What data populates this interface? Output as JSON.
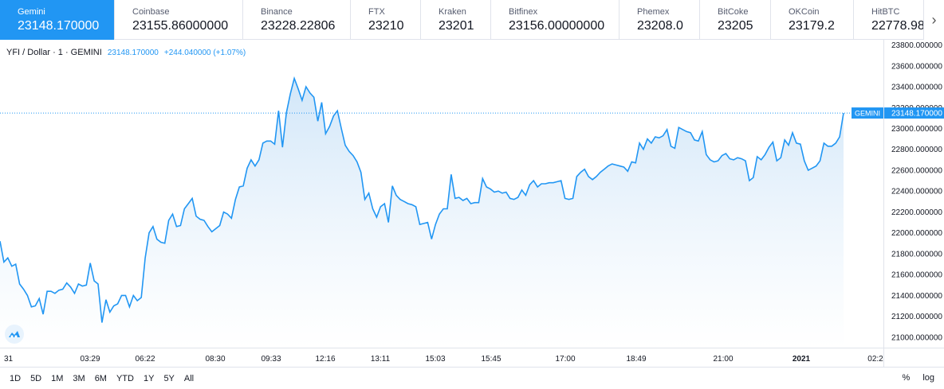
{
  "exchanges": [
    {
      "name": "Gemini",
      "price": "23148.170000",
      "active": true
    },
    {
      "name": "Coinbase",
      "price": "23155.86000000",
      "active": false
    },
    {
      "name": "Binance",
      "price": "23228.22806",
      "active": false
    },
    {
      "name": "FTX",
      "price": "23210",
      "active": false
    },
    {
      "name": "Kraken",
      "price": "23201",
      "active": false
    },
    {
      "name": "Bitfinex",
      "price": "23156.00000000",
      "active": false
    },
    {
      "name": "Phemex",
      "price": "23208.0",
      "active": false
    },
    {
      "name": "BitCoke",
      "price": "23205",
      "active": false
    },
    {
      "name": "OKCoin",
      "price": "23179.2",
      "active": false
    },
    {
      "name": "HitBTC",
      "price": "22778.98",
      "active": false
    }
  ],
  "legend": {
    "symbol": "YFI / Dollar · 1 · GEMINI",
    "last": "23148.170000",
    "change": "+244.040000 (+1.07%)"
  },
  "timeframes": [
    "1D",
    "5D",
    "1M",
    "3M",
    "6M",
    "YTD",
    "1Y",
    "5Y",
    "All"
  ],
  "scale_options": {
    "percent": "%",
    "log": "log"
  },
  "colors": {
    "accent": "#2196f3",
    "line": "#2196f3",
    "fill_top": "#cfe5f8"
  },
  "chart_data": {
    "type": "area",
    "title": "YFI / Dollar · 1 · GEMINI",
    "xlabel": "",
    "ylabel": "",
    "ylim": [
      20900,
      23850
    ],
    "y_ticks": [
      "21000.000000",
      "21200.000000",
      "21400.000000",
      "21600.000000",
      "21800.000000",
      "22000.000000",
      "22200.000000",
      "22400.000000",
      "22600.000000",
      "22800.000000",
      "23000.000000",
      "23200.000000",
      "23400.000000",
      "23600.000000",
      "23800.000000"
    ],
    "x_ticks": [
      "31",
      "03:29",
      "06:22",
      "08:30",
      "09:33",
      "12:16",
      "13:11",
      "15:03",
      "15:45",
      "17:00",
      "18:49",
      "21:00",
      "2021",
      "02:2"
    ],
    "last_value_label": {
      "exchange": "GEMINI",
      "value": "23148.170000",
      "numeric": 23148.17
    },
    "grid": false,
    "legend_position": "top-left",
    "series": [
      {
        "values": [
          21920,
          21720,
          21760,
          21680,
          21700,
          21510,
          21460,
          21400,
          21290,
          21300,
          21370,
          21220,
          21440,
          21440,
          21420,
          21450,
          21460,
          21520,
          21480,
          21420,
          21510,
          21490,
          21500,
          21710,
          21540,
          21510,
          21140,
          21360,
          21240,
          21300,
          21320,
          21400,
          21400,
          21290,
          21400,
          21350,
          21380,
          21760,
          22000,
          22060,
          21940,
          21910,
          21900,
          22120,
          22180,
          22060,
          22070,
          22230,
          22280,
          22330,
          22160,
          22130,
          22120,
          22060,
          22010,
          22040,
          22070,
          22200,
          22180,
          22140,
          22320,
          22440,
          22450,
          22620,
          22700,
          22640,
          22700,
          22860,
          22880,
          22880,
          22850,
          23170,
          22820,
          23150,
          23330,
          23480,
          23380,
          23270,
          23400,
          23340,
          23300,
          23070,
          23250,
          22950,
          23020,
          23120,
          23170,
          23000,
          22840,
          22780,
          22740,
          22680,
          22580,
          22320,
          22380,
          22230,
          22150,
          22250,
          22280,
          22100,
          22450,
          22360,
          22320,
          22300,
          22280,
          22270,
          22250,
          22080,
          22090,
          22100,
          21940,
          22080,
          22180,
          22230,
          22230,
          22560,
          22330,
          22340,
          22310,
          22330,
          22280,
          22290,
          22290,
          22520,
          22440,
          22420,
          22390,
          22400,
          22380,
          22390,
          22330,
          22320,
          22340,
          22410,
          22360,
          22460,
          22500,
          22440,
          22470,
          22470,
          22480,
          22480,
          22490,
          22500,
          22330,
          22320,
          22330,
          22540,
          22580,
          22610,
          22540,
          22510,
          22540,
          22580,
          22610,
          22640,
          22660,
          22650,
          22640,
          22630,
          22590,
          22680,
          22670,
          22860,
          22800,
          22900,
          22860,
          22920,
          22910,
          22930,
          22990,
          22830,
          22810,
          23010,
          22990,
          22970,
          22960,
          22890,
          22880,
          22970,
          22750,
          22700,
          22680,
          22690,
          22740,
          22760,
          22710,
          22700,
          22720,
          22710,
          22690,
          22500,
          22530,
          22730,
          22700,
          22750,
          22820,
          22870,
          22690,
          22720,
          22890,
          22840,
          22960,
          22860,
          22850,
          22690,
          22600,
          22620,
          22640,
          22690,
          22860,
          22830,
          22830,
          22860,
          22920,
          23148.17
        ]
      }
    ]
  }
}
